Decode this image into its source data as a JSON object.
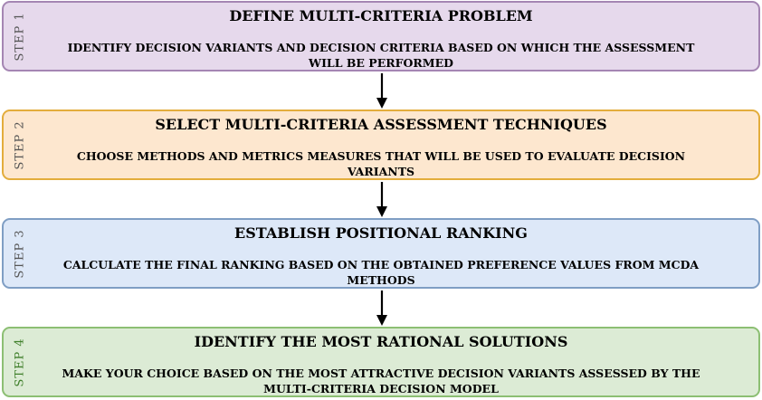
{
  "steps": [
    {
      "label": "STEP 1",
      "title": "DEFINE MULTI-CRITERIA PROBLEM",
      "description": "IDENTIFY DECISION VARIANTS AND DECISION CRITERIA BASED ON WHICH THE ASSESSMENT WILL BE PERFORMED",
      "fill": "#e6d9ec",
      "border": "#a586b3",
      "label_color": "#555555"
    },
    {
      "label": "STEP 2",
      "title": "SELECT MULTI-CRITERIA ASSESSMENT TECHNIQUES",
      "description": "CHOOSE METHODS AND METRICS MEASURES THAT WILL BE USED TO EVALUATE DECISION VARIANTS",
      "fill": "#fde7cf",
      "border": "#e3ad3c",
      "label_color": "#555555"
    },
    {
      "label": "STEP 3",
      "title": "ESTABLISH POSITIONAL RANKING",
      "description": "CALCULATE THE FINAL RANKING BASED ON THE OBTAINED PREFERENCE VALUES FROM MCDA METHODS",
      "fill": "#dde8f8",
      "border": "#7f9ec4",
      "label_color": "#555555"
    },
    {
      "label": "STEP 4",
      "title": "IDENTIFY THE MOST RATIONAL SOLUTIONS",
      "description": "MAKE YOUR CHOICE BASED ON THE MOST ATTRACTIVE DECISION VARIANTS ASSESSED BY THE MULTI-CRITERIA DECISION MODEL",
      "fill": "#dcebd5",
      "border": "#8cbf73",
      "label_color": "#3f7f2a"
    }
  ],
  "connector_color": "#000000"
}
